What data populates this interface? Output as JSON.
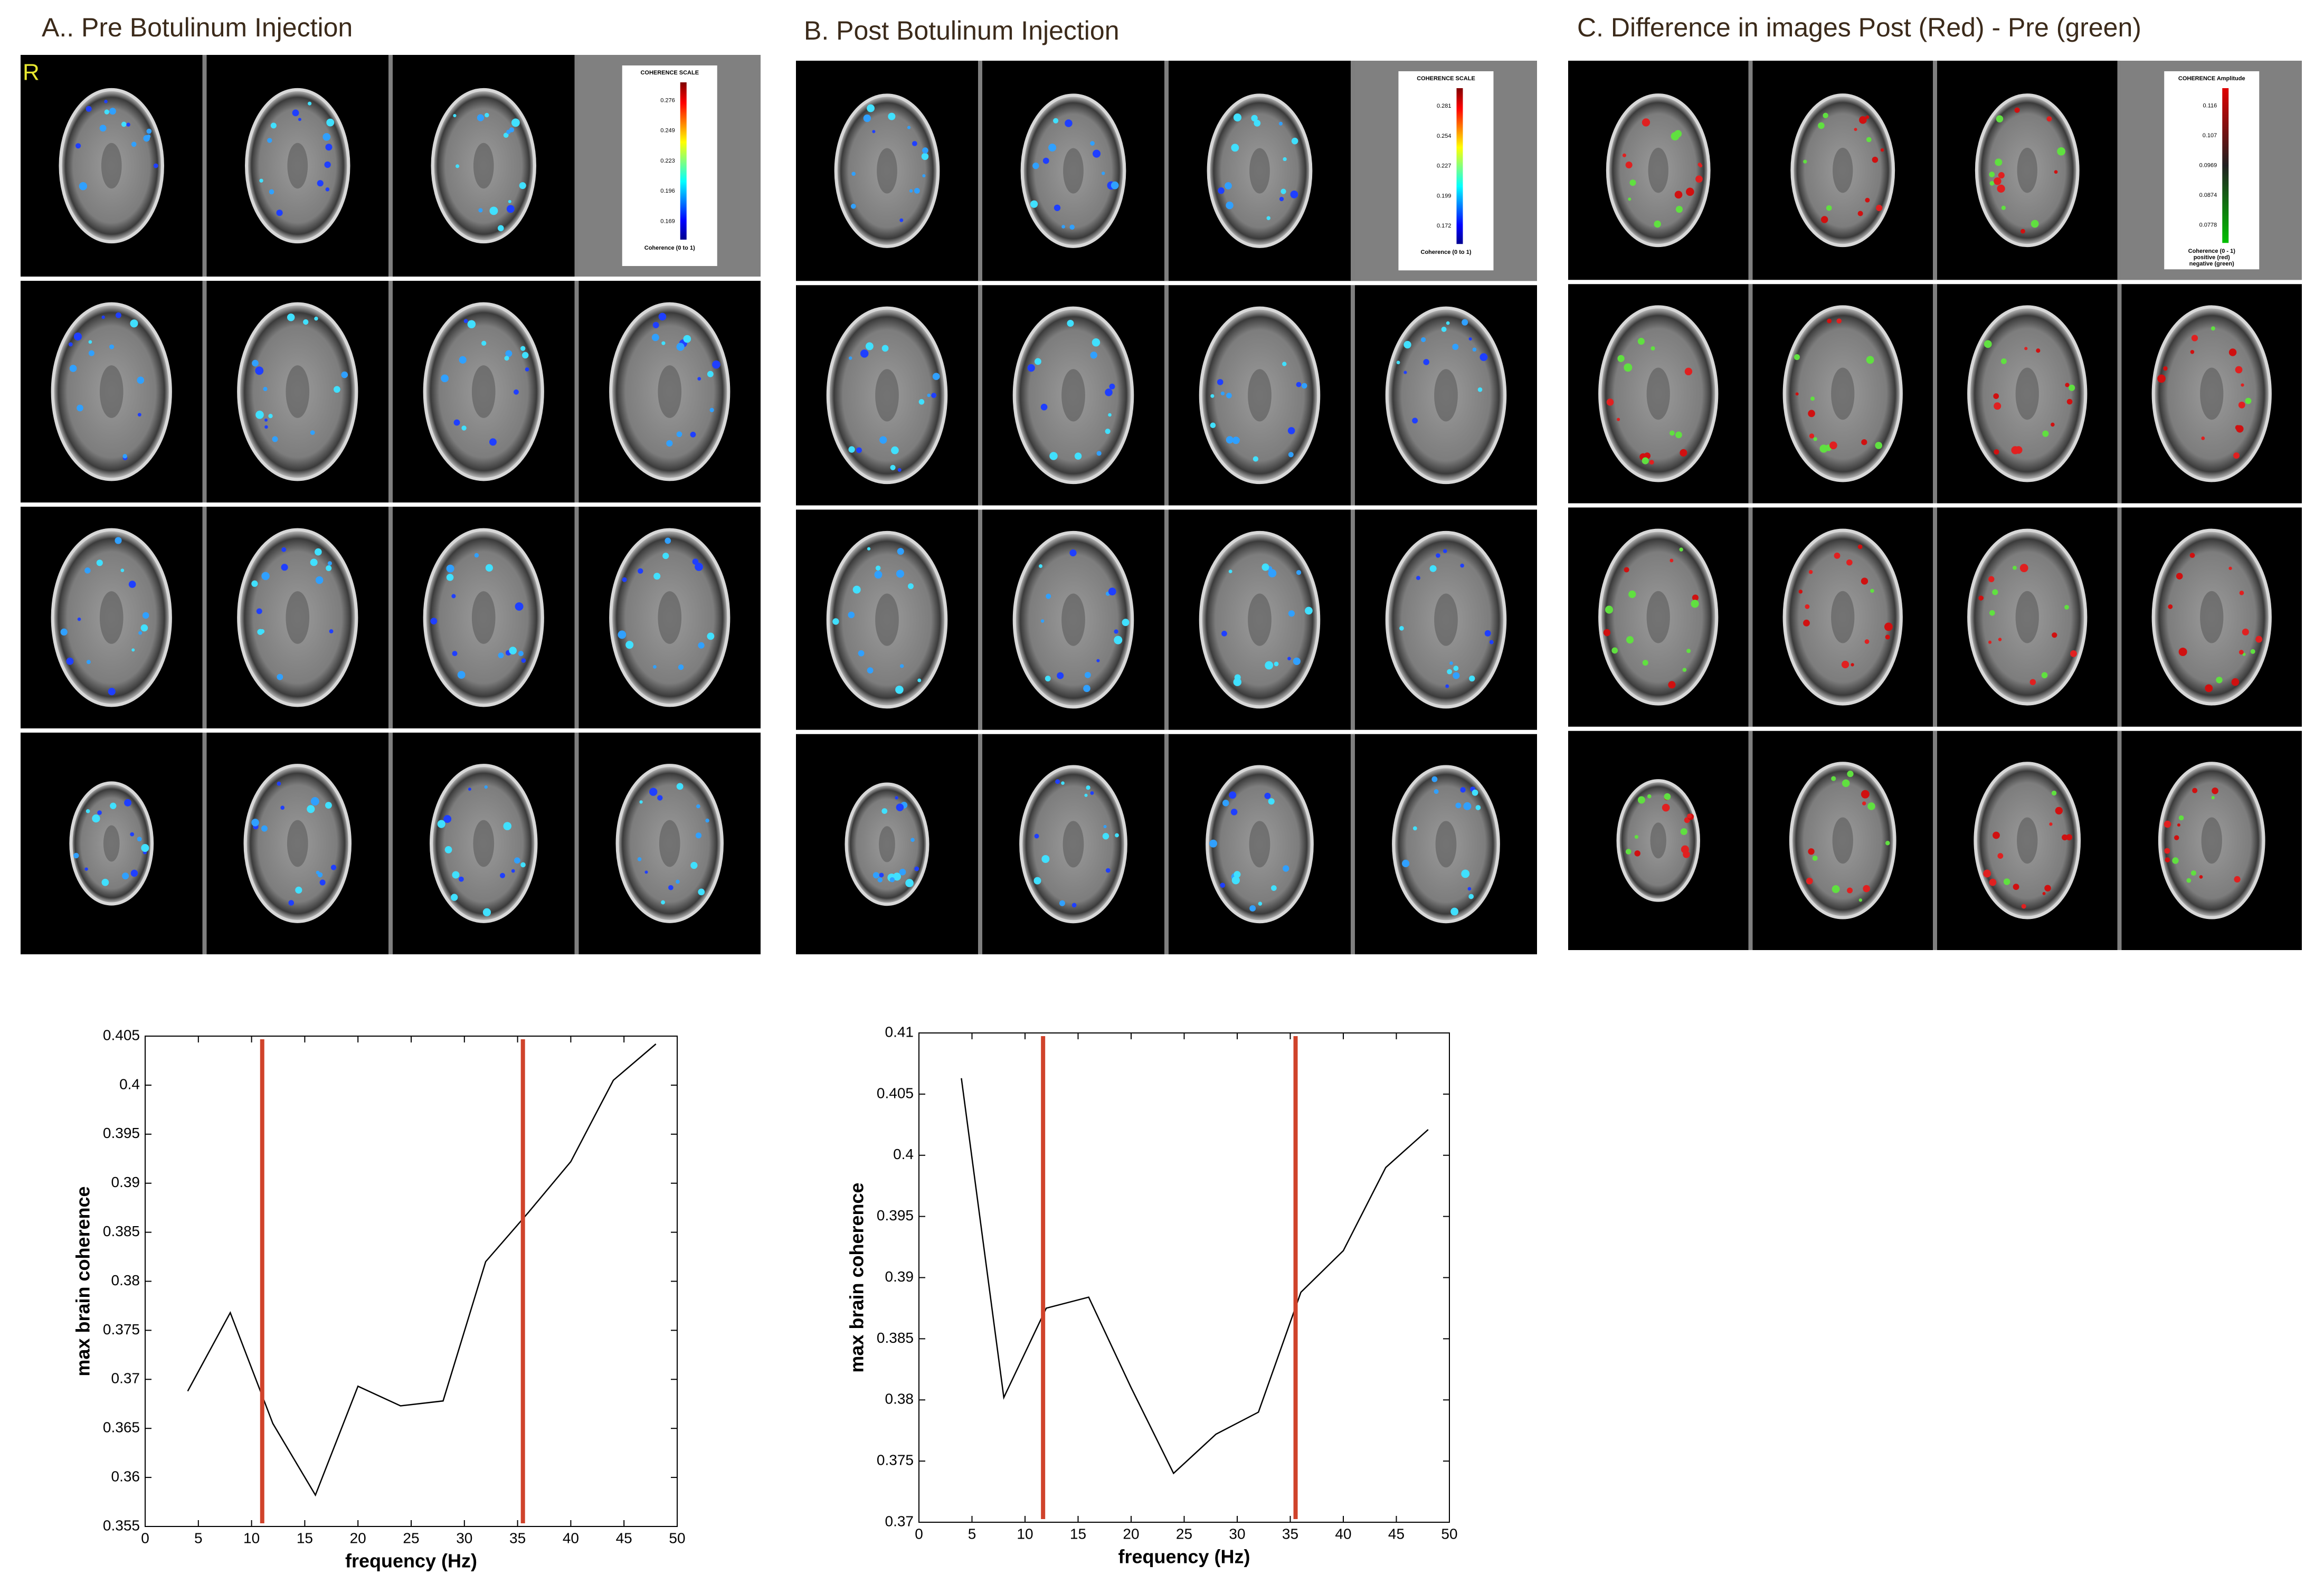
{
  "panels": [
    {
      "title": "A.. Pre Botulinum Injection",
      "orientation_label": "R",
      "colorbar": {
        "title": "COHERENCE SCALE",
        "ticks": [
          "0.276",
          "0.249",
          "0.223",
          "0.196",
          "0.169"
        ],
        "footer": [
          "Coherence (0 to 1)"
        ]
      }
    },
    {
      "title": "B. Post Botulinum Injection",
      "colorbar": {
        "title": "COHERENCE SCALE",
        "ticks": [
          "0.281",
          "0.254",
          "0.227",
          "0.199",
          "0.172"
        ],
        "footer": [
          "Coherence (0 to 1)"
        ]
      }
    },
    {
      "title": "C. Difference in images Post (Red) -  Pre (green)",
      "colorbar": {
        "title": "COHERENCE Amplitude",
        "ticks": [
          "0.116",
          "0.107",
          "0.0969",
          "0.0874",
          "0.0778"
        ],
        "footer": [
          "Coherence (0 - 1)",
          "positive (red)",
          "negative (green)"
        ]
      }
    }
  ],
  "chart_data": [
    {
      "type": "line",
      "xlabel": "frequency (Hz)",
      "ylabel": "max brain coherence",
      "x": [
        4,
        8,
        12,
        16,
        20,
        24,
        28,
        32,
        36,
        40,
        44,
        48
      ],
      "series": [
        {
          "color": "#000000",
          "values": [
            0.3688,
            0.3768,
            0.3655,
            0.3582,
            0.3693,
            0.3673,
            0.3678,
            0.382,
            0.387,
            0.3922,
            0.4005,
            0.4042
          ]
        }
      ],
      "xlim": [
        0,
        50
      ],
      "xticks": [
        0,
        5,
        10,
        15,
        20,
        25,
        30,
        35,
        40,
        45,
        50
      ],
      "ylim": [
        0.355,
        0.405
      ],
      "yticks": [
        0.355,
        0.36,
        0.365,
        0.37,
        0.375,
        0.38,
        0.385,
        0.39,
        0.395,
        0.4,
        0.405
      ],
      "vlines": [
        11,
        35.5
      ],
      "vline_color": "#d0432b"
    },
    {
      "type": "line",
      "xlabel": "frequency (Hz)",
      "ylabel": "max brain coherence",
      "x": [
        4,
        8,
        12,
        16,
        20,
        24,
        28,
        32,
        36,
        40,
        44,
        48
      ],
      "series": [
        {
          "color": "#000000",
          "values": [
            0.4063,
            0.3802,
            0.3875,
            0.3884,
            0.381,
            0.374,
            0.3772,
            0.379,
            0.3888,
            0.3922,
            0.399,
            0.4021
          ]
        }
      ],
      "xlim": [
        0,
        50
      ],
      "xticks": [
        0,
        5,
        10,
        15,
        20,
        25,
        30,
        35,
        40,
        45,
        50
      ],
      "ylim": [
        0.37,
        0.41
      ],
      "yticks": [
        0.37,
        0.375,
        0.38,
        0.385,
        0.39,
        0.395,
        0.4,
        0.405,
        0.41
      ],
      "vlines": [
        11.7,
        35.5
      ],
      "vline_color": "#d0432b"
    }
  ]
}
